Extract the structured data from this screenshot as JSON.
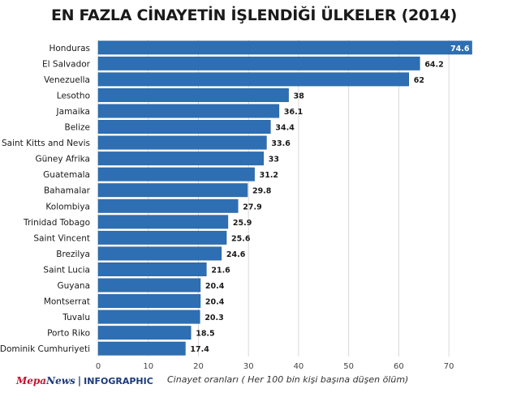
{
  "title": "EN FAZLA CİNAYETİN İŞLENDİĞİ ÜLKELER (2014)",
  "brand": {
    "part1": "MepaNews",
    "part1a": "Mepa",
    "part1b": "News",
    "separator": "|",
    "part2": "INFOGRAPHIC"
  },
  "colors": {
    "bar": "#2e6fb3",
    "bar_edge": "#235a94",
    "grid": "#d9d9d9",
    "text": "#1a1a1a"
  },
  "chart_data": {
    "type": "bar",
    "orientation": "horizontal",
    "categories": [
      "Honduras",
      "El Salvador",
      "Venezuella",
      "Lesotho",
      "Jamaika",
      "Belize",
      "Saint Kitts and Nevis",
      "Güney Afrika",
      "Guatemala",
      "Bahamalar",
      "Kolombiya",
      "Trinidad Tobago",
      "Saint Vincent",
      "Brezilya",
      "Saint Lucia",
      "Guyana",
      "Montserrat",
      "Tuvalu",
      "Porto Riko",
      "Dominik Cumhuriyeti"
    ],
    "values": [
      74.6,
      64.2,
      62,
      38,
      36.1,
      34.4,
      33.6,
      33,
      31.2,
      29.8,
      27.9,
      25.9,
      25.6,
      24.6,
      21.6,
      20.4,
      20.4,
      20.3,
      18.5,
      17.4
    ],
    "value_labels": [
      "74.6",
      "64.2",
      "62",
      "38",
      "36.1",
      "34.4",
      "33.6",
      "33",
      "31.2",
      "29.8",
      "27.9",
      "25.9",
      "25.6",
      "24.6",
      "21.6",
      "20.4",
      "20.4",
      "20.3",
      "18.5",
      "17.4"
    ],
    "xticks": [
      0,
      10,
      20,
      30,
      40,
      50,
      60,
      70
    ],
    "xlim": [
      0,
      75
    ],
    "xlabel": "Cinayet oranları ( Her 100 bin kişi başına düşen ölüm)",
    "ylabel": "",
    "grid": "vertical"
  }
}
